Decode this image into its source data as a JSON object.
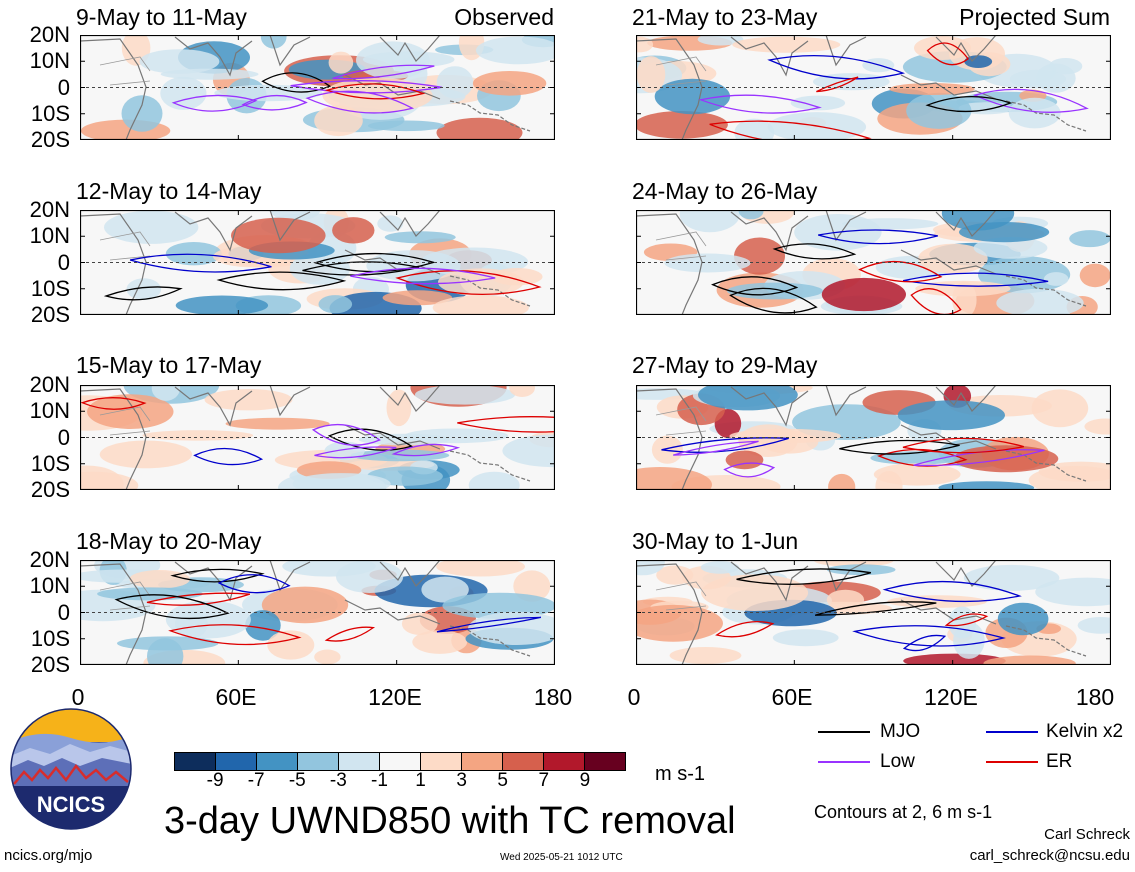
{
  "panels_left": [
    {
      "title": "9-May to 11-May",
      "tag": "Observed"
    },
    {
      "title": "12-May to 14-May",
      "tag": ""
    },
    {
      "title": "15-May to 17-May",
      "tag": ""
    },
    {
      "title": "18-May to 20-May",
      "tag": ""
    }
  ],
  "panels_right": [
    {
      "title": "21-May to 23-May",
      "tag": "Projected Sum"
    },
    {
      "title": "24-May to 26-May",
      "tag": ""
    },
    {
      "title": "27-May to 29-May",
      "tag": ""
    },
    {
      "title": "30-May to 1-Jun",
      "tag": ""
    }
  ],
  "lat_labels": [
    "20N",
    "10N",
    "0",
    "10S",
    "20S"
  ],
  "lon_labels": [
    "0",
    "60E",
    "120E",
    "180"
  ],
  "colorbar": {
    "ticks": [
      "-9",
      "-7",
      "-5",
      "-3",
      "-1",
      "1",
      "3",
      "5",
      "7",
      "9"
    ],
    "units": "m s-1",
    "colors": [
      "#0d2d5c",
      "#2166ac",
      "#4393c3",
      "#92c5de",
      "#d1e5f0",
      "#f7f7f7",
      "#fddbc7",
      "#f4a582",
      "#d6604d",
      "#b2182b",
      "#67001f"
    ]
  },
  "legend": {
    "mjo": {
      "label": "MJO",
      "color": "#000000"
    },
    "kelvin": {
      "label": "Kelvin x2",
      "color": "#0000cc"
    },
    "low": {
      "label": "Low",
      "color": "#9933ff"
    },
    "er": {
      "label": "ER",
      "color": "#dd0000"
    }
  },
  "title": "3-day UWND850 with TC removal",
  "contours_note": "Contours at 2, 6 m s-1",
  "author": "Carl Schreck",
  "email": "carl_schreck@ncsu.edu",
  "site": "ncics.org/mjo",
  "timestamp": "Wed 2025-05-21 1012 UTC",
  "logo_text": "NCICS"
}
